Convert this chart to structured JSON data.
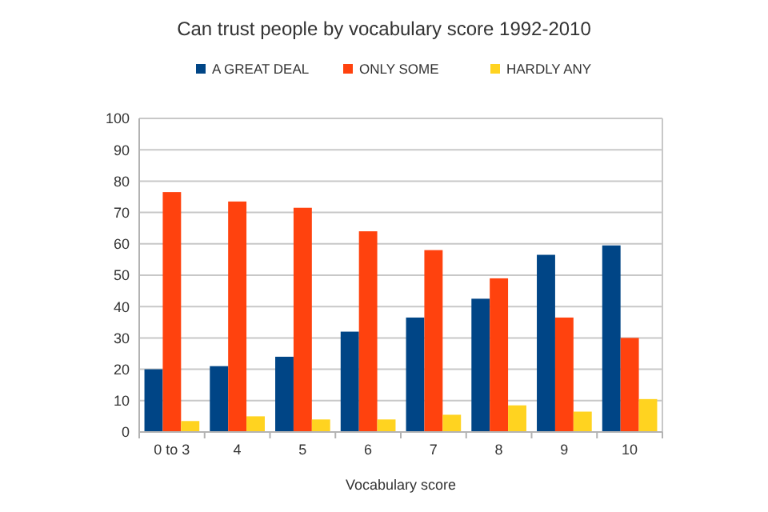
{
  "chart_data": {
    "type": "bar",
    "title": "Can trust people by vocabulary score 1992-2010",
    "xlabel": "Vocabulary score",
    "categories": [
      "0 to 3",
      "4",
      "5",
      "6",
      "7",
      "8",
      "9",
      "10"
    ],
    "series": [
      {
        "name": "A GREAT DEAL",
        "color": "#004586",
        "values": [
          20,
          21,
          24,
          32,
          36.5,
          42.5,
          56.5,
          59.5
        ]
      },
      {
        "name": "ONLY SOME",
        "color": "#ff420e",
        "values": [
          76.5,
          73.5,
          71.5,
          64,
          58,
          49,
          36.5,
          30
        ]
      },
      {
        "name": "HARDLY ANY",
        "color": "#ffd320",
        "values": [
          3.5,
          5,
          4,
          4,
          5.5,
          8.5,
          6.5,
          10.5
        ]
      }
    ],
    "ylim": [
      0,
      100
    ],
    "yticks": [
      0,
      10,
      20,
      30,
      40,
      50,
      60,
      70,
      80,
      90,
      100
    ],
    "grid": "y",
    "legend": "top"
  }
}
